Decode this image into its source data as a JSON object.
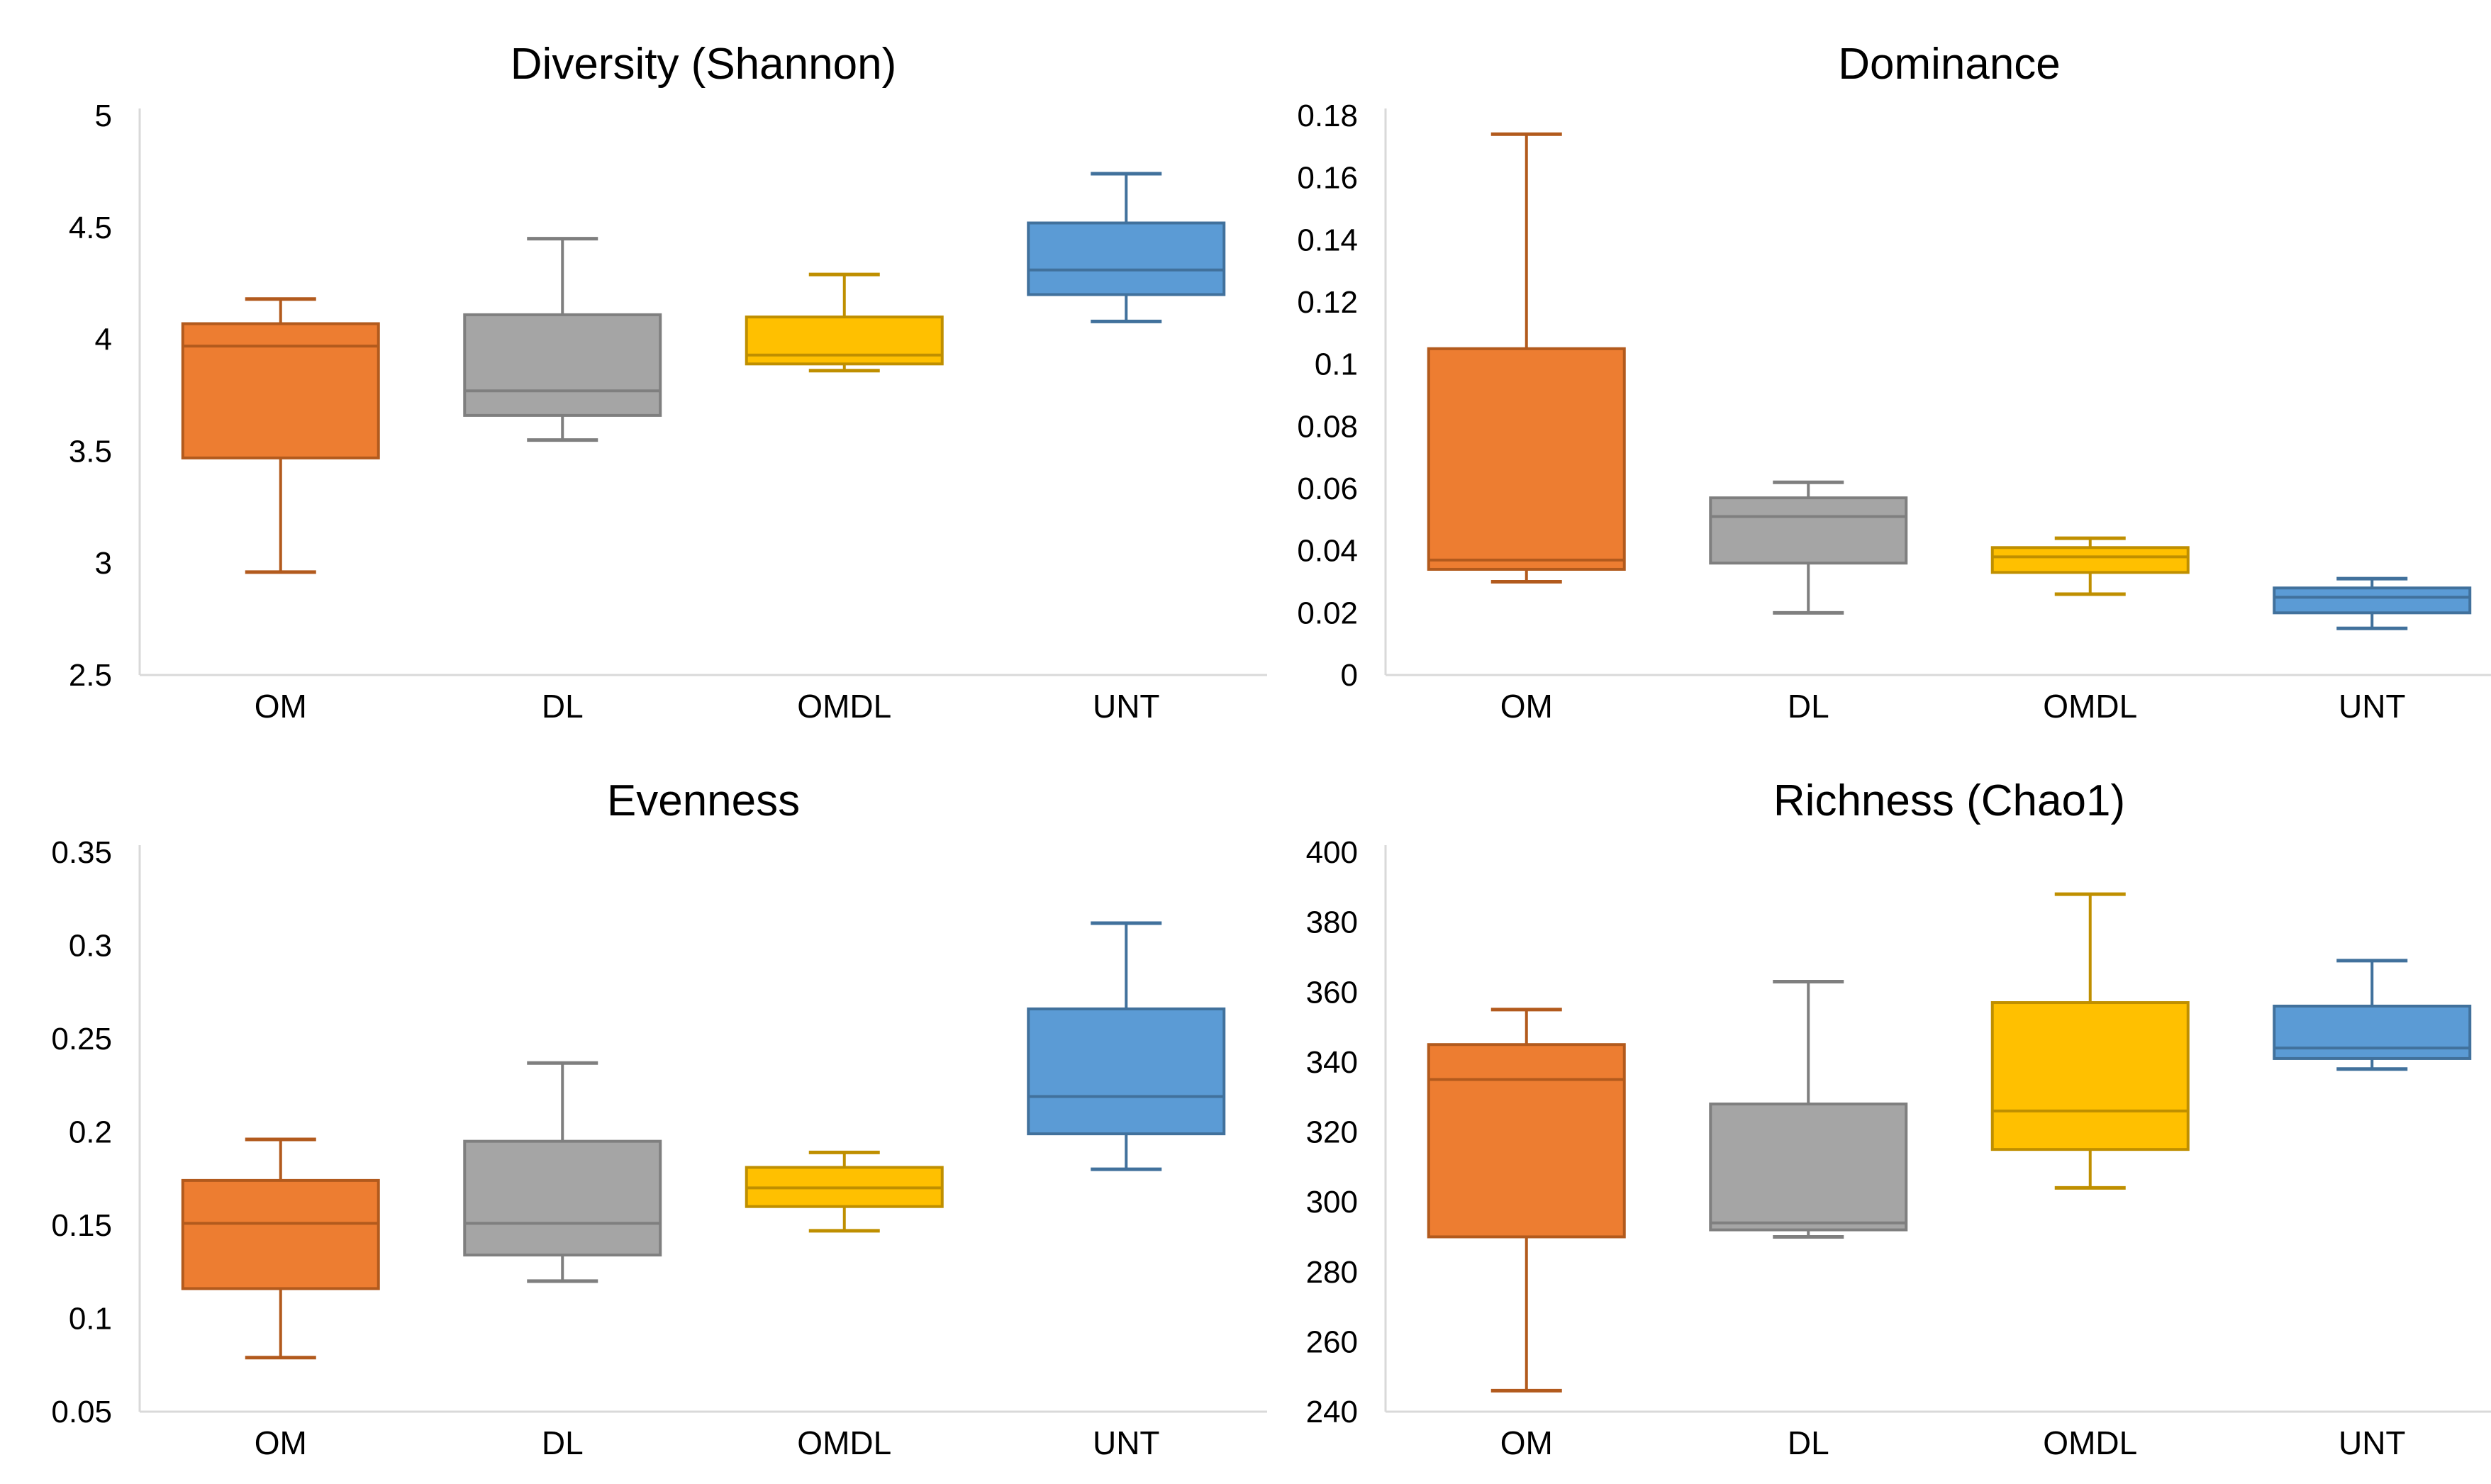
{
  "style": {
    "background": "#FFFFFF",
    "axis_color": "#D9D9D9",
    "text_color": "#000000"
  },
  "palette": {
    "OM": {
      "fill": "#ED7D31",
      "stroke": "#B25A1D"
    },
    "DL": {
      "fill": "#A5A5A5",
      "stroke": "#7F7F7F"
    },
    "OMDL": {
      "fill": "#FFC000",
      "stroke": "#BF8F00"
    },
    "UNT": {
      "fill": "#5B9BD5",
      "stroke": "#41719C"
    }
  },
  "chart_data": [
    {
      "type": "box",
      "title": "Diversity (Shannon)",
      "ylim": [
        2.5,
        5
      ],
      "yticks": [
        "2.5",
        "3",
        "3.5",
        "4",
        "4.5",
        "5"
      ],
      "grid": false,
      "legend": "none",
      "categories": [
        "OM",
        "DL",
        "OMDL",
        "UNT"
      ],
      "series": [
        {
          "name": "OM",
          "whisker_low": 2.96,
          "q1": 3.47,
          "median": 3.97,
          "q3": 4.07,
          "whisker_high": 4.18
        },
        {
          "name": "DL",
          "whisker_low": 3.55,
          "q1": 3.66,
          "median": 3.77,
          "q3": 4.11,
          "whisker_high": 4.45
        },
        {
          "name": "OMDL",
          "whisker_low": 3.86,
          "q1": 3.89,
          "median": 3.93,
          "q3": 4.1,
          "whisker_high": 4.29
        },
        {
          "name": "UNT",
          "whisker_low": 4.08,
          "q1": 4.2,
          "median": 4.31,
          "q3": 4.52,
          "whisker_high": 4.74
        }
      ]
    },
    {
      "type": "box",
      "title": "Dominance",
      "ylim": [
        0,
        0.18
      ],
      "yticks": [
        "0",
        "0.02",
        "0.04",
        "0.06",
        "0.08",
        "0.1",
        "0.12",
        "0.14",
        "0.16",
        "0.18"
      ],
      "grid": false,
      "legend": "none",
      "categories": [
        "OM",
        "DL",
        "OMDL",
        "UNT"
      ],
      "series": [
        {
          "name": "OM",
          "whisker_low": 0.03,
          "q1": 0.034,
          "median": 0.037,
          "q3": 0.105,
          "whisker_high": 0.174
        },
        {
          "name": "DL",
          "whisker_low": 0.02,
          "q1": 0.036,
          "median": 0.051,
          "q3": 0.057,
          "whisker_high": 0.062
        },
        {
          "name": "OMDL",
          "whisker_low": 0.026,
          "q1": 0.033,
          "median": 0.038,
          "q3": 0.041,
          "whisker_high": 0.044
        },
        {
          "name": "UNT",
          "whisker_low": 0.015,
          "q1": 0.02,
          "median": 0.025,
          "q3": 0.028,
          "whisker_high": 0.031
        }
      ]
    },
    {
      "type": "box",
      "title": "Evenness",
      "ylim": [
        0.05,
        0.35
      ],
      "yticks": [
        "0.05",
        "0.1",
        "0.15",
        "0.2",
        "0.25",
        "0.3",
        "0.35"
      ],
      "grid": false,
      "legend": "none",
      "categories": [
        "OM",
        "DL",
        "OMDL",
        "UNT"
      ],
      "series": [
        {
          "name": "OM",
          "whisker_low": 0.079,
          "q1": 0.116,
          "median": 0.151,
          "q3": 0.174,
          "whisker_high": 0.196
        },
        {
          "name": "DL",
          "whisker_low": 0.12,
          "q1": 0.134,
          "median": 0.151,
          "q3": 0.195,
          "whisker_high": 0.237
        },
        {
          "name": "OMDL",
          "whisker_low": 0.147,
          "q1": 0.16,
          "median": 0.17,
          "q3": 0.181,
          "whisker_high": 0.189
        },
        {
          "name": "UNT",
          "whisker_low": 0.18,
          "q1": 0.199,
          "median": 0.219,
          "q3": 0.266,
          "whisker_high": 0.312
        }
      ]
    },
    {
      "type": "box",
      "title": "Richness (Chao1)",
      "ylim": [
        240,
        400
      ],
      "yticks": [
        "240",
        "260",
        "280",
        "300",
        "320",
        "340",
        "360",
        "380",
        "400"
      ],
      "grid": false,
      "legend": "none",
      "categories": [
        "OM",
        "DL",
        "OMDL",
        "UNT"
      ],
      "series": [
        {
          "name": "OM",
          "whisker_low": 246,
          "q1": 290,
          "median": 335,
          "q3": 345,
          "whisker_high": 355
        },
        {
          "name": "DL",
          "whisker_low": 290,
          "q1": 292,
          "median": 294,
          "q3": 328,
          "whisker_high": 363
        },
        {
          "name": "OMDL",
          "whisker_low": 304,
          "q1": 315,
          "median": 326,
          "q3": 357,
          "whisker_high": 388
        },
        {
          "name": "UNT",
          "whisker_low": 338,
          "q1": 341,
          "median": 344,
          "q3": 356,
          "whisker_high": 369
        }
      ]
    }
  ]
}
